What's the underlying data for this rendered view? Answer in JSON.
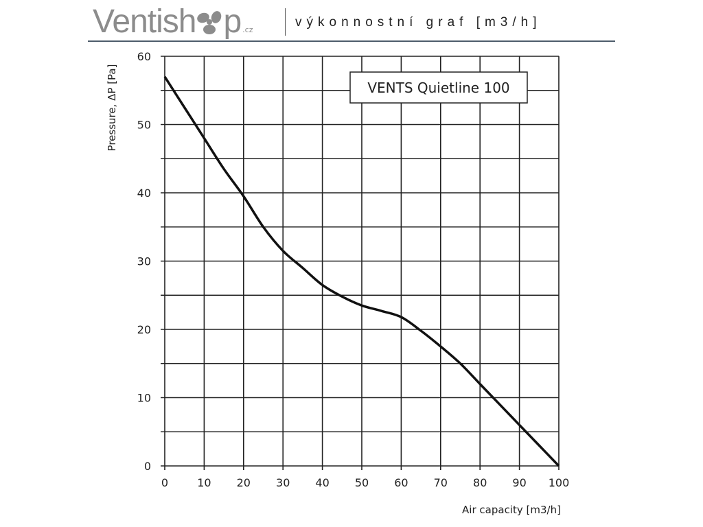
{
  "header": {
    "logo_text_1": "Ventish",
    "logo_text_2": "p",
    "logo_suffix": ".cz",
    "logo_full": "Ventishop.cz",
    "subtitle": "výkonnostní graf [m3/h]"
  },
  "colors": {
    "logo": "#8c8c8c",
    "rule": "#4d5c6b",
    "curve": "#111111",
    "grid": "#222222"
  },
  "chart_data": {
    "type": "line",
    "title": "",
    "legend": "VENTS Quietline 100",
    "legend_placement": "top-right",
    "xlabel": "Air capacity [m3/h]",
    "ylabel": "Pressure, ΔP [Pa]",
    "xlim": [
      0,
      100
    ],
    "ylim": [
      0,
      60
    ],
    "grid": true,
    "x_ticks": [
      0,
      10,
      20,
      30,
      40,
      50,
      60,
      70,
      80,
      90,
      100
    ],
    "y_ticks": [
      0,
      10,
      20,
      30,
      40,
      50,
      60
    ],
    "y_grid_step": 5,
    "series": [
      {
        "name": "VENTS Quietline 100",
        "x": [
          0,
          5,
          10,
          15,
          20,
          25,
          30,
          35,
          40,
          45,
          50,
          55,
          60,
          65,
          70,
          75,
          80,
          85,
          90,
          95,
          100
        ],
        "y": [
          57,
          52.5,
          48,
          43.5,
          39.5,
          35,
          31.5,
          29,
          26.5,
          24.8,
          23.5,
          22.7,
          21.8,
          19.8,
          17.5,
          15,
          12,
          9,
          6,
          3,
          0
        ]
      }
    ]
  }
}
